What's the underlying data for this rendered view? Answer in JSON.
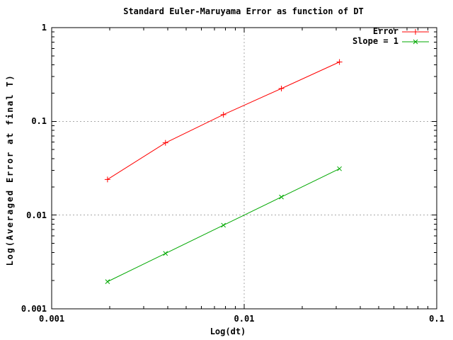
{
  "chart_data": {
    "type": "line",
    "title": "Standard Euler-Maruyama Error as function of DT",
    "xlabel": "Log(dt)",
    "ylabel": "Log(Averaged Error at final T)",
    "x_scale": "log",
    "y_scale": "log",
    "xlim": [
      0.001,
      0.1
    ],
    "ylim": [
      0.001,
      1
    ],
    "x_ticks": [
      0.001,
      0.01,
      0.1
    ],
    "x_tick_labels": [
      "0.001",
      "0.01",
      "0.1"
    ],
    "y_ticks": [
      0.001,
      0.01,
      0.1,
      1
    ],
    "y_tick_labels": [
      "0.001",
      "0.01",
      "0.1",
      "1"
    ],
    "grid": true,
    "minor_ticks": true,
    "legend_position": "top-right-inside",
    "series": [
      {
        "name": "Error",
        "color": "#ff0000",
        "marker": "plus",
        "x": [
          0.00195,
          0.0039,
          0.0078,
          0.0156,
          0.03125
        ],
        "y": [
          0.024,
          0.059,
          0.118,
          0.224,
          0.43
        ]
      },
      {
        "name": "Slope = 1",
        "color": "#00a800",
        "marker": "cross",
        "x": [
          0.00195,
          0.0039,
          0.0078,
          0.0156,
          0.03125
        ],
        "y": [
          0.00195,
          0.0039,
          0.0078,
          0.0156,
          0.03125
        ]
      }
    ],
    "colors": {
      "background": "#ffffff",
      "frame": "#000000",
      "grid": "#a8a8a8",
      "text": "#000000"
    }
  }
}
